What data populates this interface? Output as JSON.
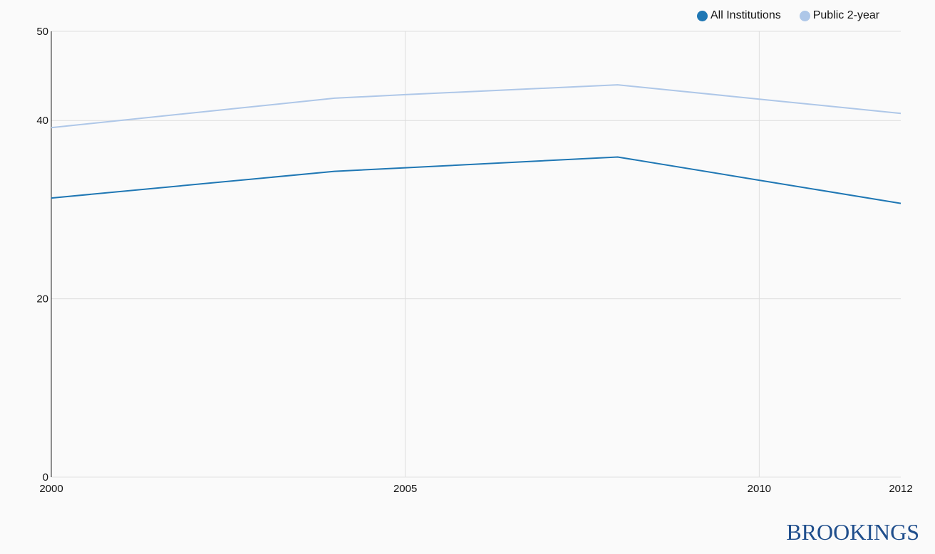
{
  "chart_data": {
    "type": "line",
    "title": "",
    "xlabel": "",
    "ylabel": "",
    "x": [
      2000,
      2004,
      2005,
      2008,
      2010,
      2012
    ],
    "xlim": [
      2000,
      2012
    ],
    "ylim": [
      0,
      50
    ],
    "x_ticks": [
      2000,
      2005,
      2010,
      2012
    ],
    "y_ticks": [
      0,
      20,
      40,
      50
    ],
    "grid": true,
    "legend_position": "top-right",
    "series": [
      {
        "name": "All Institutions",
        "color": "#1f77b4",
        "values": [
          31.3,
          34.3,
          34.7,
          35.9,
          33.3,
          30.7
        ]
      },
      {
        "name": "Public 2-year",
        "color": "#aec7e8",
        "values": [
          39.2,
          42.5,
          42.9,
          44.0,
          42.4,
          40.8
        ]
      }
    ]
  },
  "brand": {
    "text": "BROOKINGS",
    "color": "#1f4e8c"
  }
}
